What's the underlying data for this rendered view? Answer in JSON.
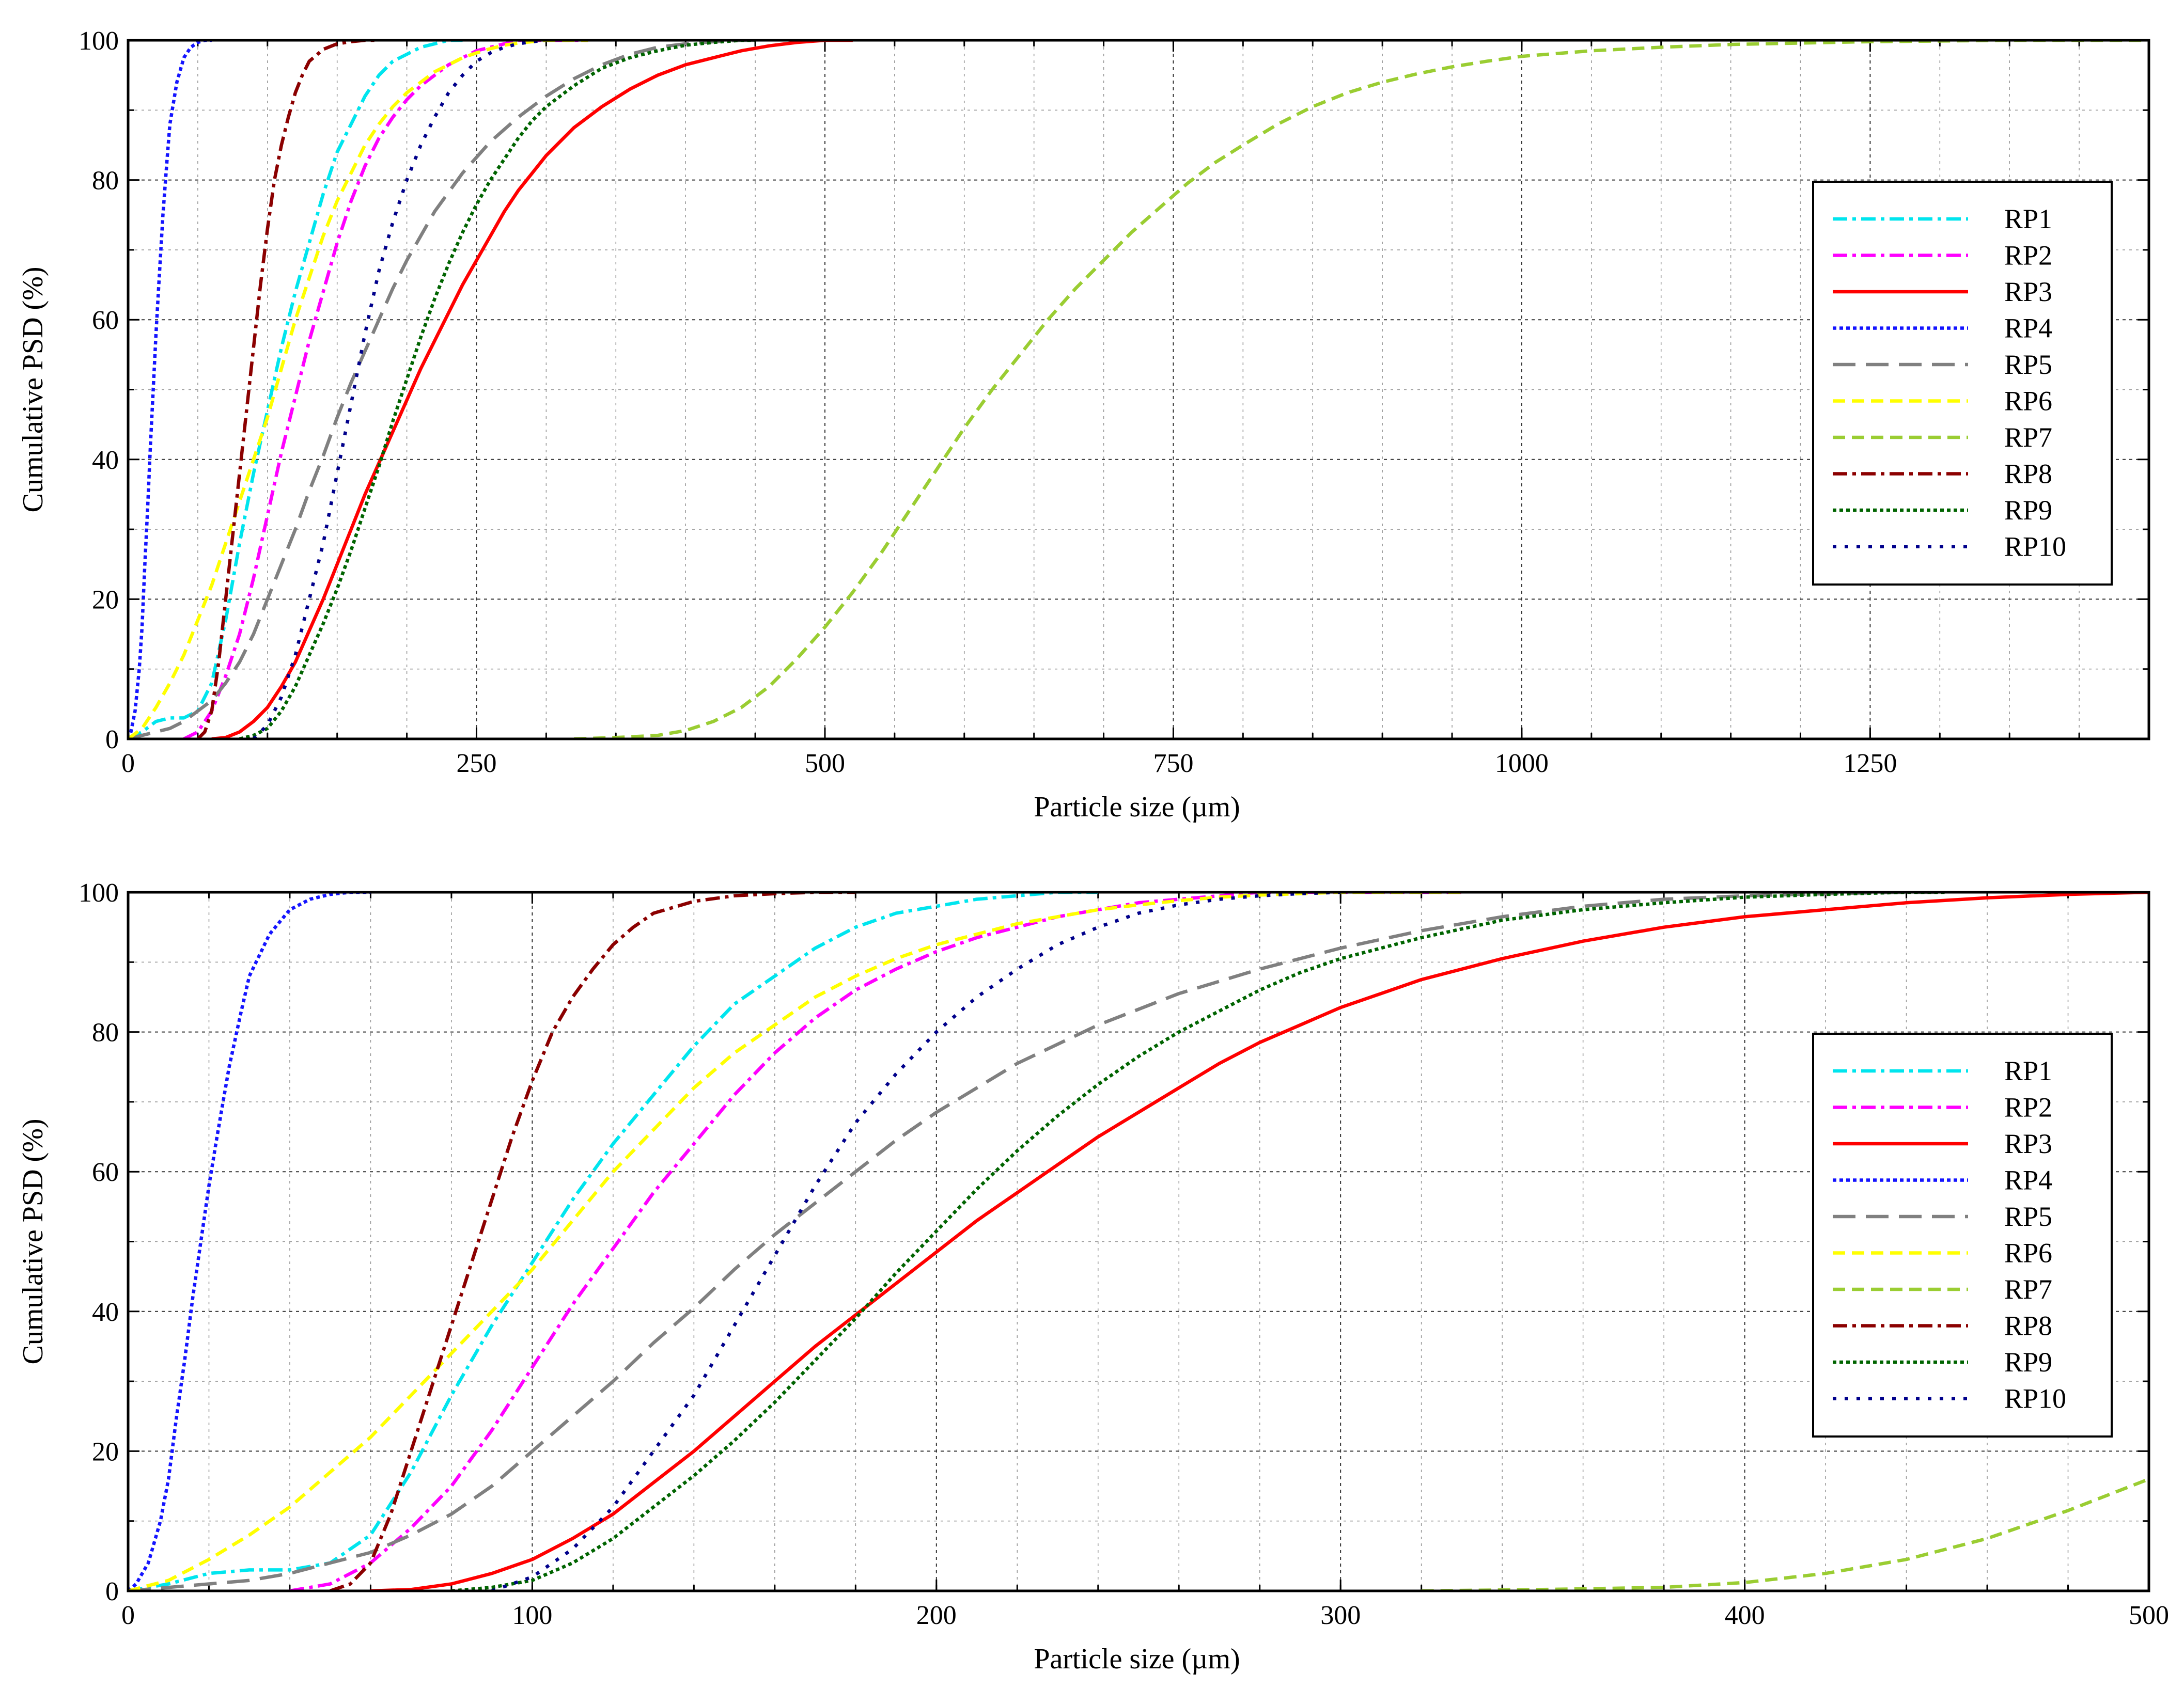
{
  "chart_data": [
    {
      "type": "line",
      "xlabel": "Particle size (µm)",
      "ylabel": "Cumulative PSD (%)",
      "xlim": [
        0,
        1450
      ],
      "ylim": [
        0,
        100
      ],
      "x_major_ticks": [
        0,
        250,
        500,
        750,
        1000,
        1250
      ],
      "x_minor_step": 50,
      "y_major_ticks": [
        0,
        20,
        40,
        60,
        80,
        100
      ],
      "y_minor_step": 10,
      "grid": true,
      "legend_position": "right",
      "series": [
        {
          "name": "RP1",
          "color": "#00e5ee",
          "dash": "dashdot",
          "x": [
            0,
            10,
            20,
            30,
            40,
            50,
            60,
            70,
            80,
            90,
            100,
            110,
            120,
            130,
            140,
            150,
            160,
            170,
            180,
            190,
            200,
            210,
            220,
            230,
            240
          ],
          "y": [
            0,
            1,
            2.5,
            3,
            3,
            4,
            8,
            17,
            28,
            38,
            47,
            56,
            64,
            71,
            78,
            84,
            88,
            92,
            95,
            97,
            98,
            99,
            99.5,
            100,
            100
          ]
        },
        {
          "name": "RP2",
          "color": "#ff00ff",
          "dash": "dashdot",
          "x": [
            40,
            50,
            60,
            70,
            80,
            90,
            100,
            110,
            120,
            130,
            140,
            150,
            160,
            170,
            180,
            190,
            200,
            210,
            220,
            230,
            240,
            250,
            260,
            270,
            280,
            300,
            320,
            330
          ],
          "y": [
            0,
            1,
            4,
            9,
            15,
            23,
            32,
            41,
            49,
            57,
            64,
            71,
            77,
            82,
            86,
            89,
            91.5,
            93.5,
            95,
            96.5,
            97.5,
            98.5,
            99,
            99.5,
            100,
            100,
            100,
            100
          ]
        },
        {
          "name": "RP3",
          "color": "#ff0000",
          "dash": "solid",
          "x": [
            60,
            70,
            80,
            90,
            100,
            110,
            120,
            130,
            140,
            150,
            160,
            170,
            180,
            190,
            200,
            210,
            220,
            230,
            240,
            250,
            260,
            270,
            280,
            290,
            300,
            320,
            340,
            360,
            380,
            400,
            420,
            440,
            460,
            480,
            500,
            520
          ],
          "y": [
            0,
            0.2,
            1,
            2.5,
            4.5,
            7.5,
            11,
            15.5,
            20,
            25,
            30,
            35,
            39.5,
            44,
            48.5,
            53,
            57,
            61,
            65,
            68.5,
            72,
            75.5,
            78.5,
            81,
            83.5,
            87.5,
            90.5,
            93,
            95,
            96.5,
            97.5,
            98.5,
            99.2,
            99.7,
            100,
            100
          ]
        },
        {
          "name": "RP4",
          "color": "#1414ff",
          "dash": "dot",
          "x": [
            0,
            2,
            5,
            8,
            10,
            12,
            14,
            16,
            18,
            20,
            22,
            25,
            28,
            30,
            35,
            40,
            45,
            50,
            55,
            60
          ],
          "y": [
            0,
            1,
            4,
            10,
            16,
            25,
            33,
            42,
            50,
            58,
            65,
            75,
            83,
            88,
            94,
            97.5,
            99,
            99.7,
            100,
            100
          ]
        },
        {
          "name": "RP5",
          "color": "#808080",
          "dash": "longdash",
          "x": [
            0,
            10,
            20,
            30,
            40,
            50,
            60,
            70,
            80,
            90,
            100,
            110,
            120,
            130,
            140,
            150,
            160,
            170,
            180,
            190,
            200,
            220,
            240,
            260,
            280,
            300,
            320,
            340,
            360,
            380,
            400,
            420,
            440,
            450
          ],
          "y": [
            0,
            0.5,
            1,
            1.5,
            2.5,
            4,
            5.5,
            8,
            11,
            15,
            20,
            25,
            30,
            35.5,
            40.5,
            46,
            51,
            55.5,
            60,
            64.5,
            68.5,
            75.5,
            81,
            85.5,
            89,
            92,
            94.5,
            96.5,
            98,
            99,
            99.5,
            99.8,
            100,
            100
          ]
        },
        {
          "name": "RP6",
          "color": "#ffff00",
          "dash": "dash",
          "x": [
            0,
            10,
            20,
            30,
            40,
            50,
            60,
            70,
            80,
            90,
            100,
            110,
            120,
            130,
            140,
            150,
            160,
            170,
            180,
            190,
            200,
            210,
            220,
            230,
            240,
            250,
            260,
            270,
            280,
            290,
            300,
            320,
            330
          ],
          "y": [
            0,
            1.5,
            4.5,
            8,
            12,
            17,
            22,
            28,
            34,
            40,
            46,
            53,
            60,
            66,
            72,
            77,
            81,
            85,
            88,
            90.5,
            92.5,
            94,
            95.5,
            96.5,
            97.5,
            98.2,
            98.8,
            99.3,
            99.6,
            99.8,
            100,
            100,
            100
          ]
        },
        {
          "name": "RP7",
          "color": "#9acd32",
          "dash": "dash",
          "x": [
            320,
            350,
            380,
            400,
            420,
            440,
            460,
            480,
            500,
            520,
            540,
            560,
            580,
            600,
            620,
            640,
            660,
            680,
            700,
            720,
            740,
            760,
            780,
            800,
            825,
            850,
            875,
            900,
            925,
            950,
            975,
            1000,
            1050,
            1100,
            1150,
            1200,
            1250,
            1300,
            1350,
            1400,
            1450
          ],
          "y": [
            0,
            0.2,
            0.5,
            1.2,
            2.5,
            4.5,
            7.5,
            11.5,
            16,
            21,
            26.5,
            32.5,
            38.5,
            44.5,
            50,
            55,
            60,
            64.5,
            68.5,
            72.5,
            76,
            79.5,
            82.5,
            85,
            88,
            90.5,
            92.5,
            94,
            95.2,
            96.2,
            97,
            97.7,
            98.5,
            99,
            99.4,
            99.6,
            99.8,
            99.9,
            100,
            100,
            100
          ]
        },
        {
          "name": "RP8",
          "color": "#8b0000",
          "dash": "dashdot",
          "x": [
            50,
            55,
            60,
            65,
            70,
            75,
            80,
            85,
            90,
            95,
            100,
            105,
            110,
            115,
            120,
            125,
            130,
            140,
            150,
            160,
            170,
            180
          ],
          "y": [
            0,
            1,
            4,
            11,
            20,
            29,
            38,
            47,
            56,
            65,
            73,
            80,
            85,
            89,
            92.5,
            95,
            97,
            98.7,
            99.5,
            99.8,
            100,
            100
          ]
        },
        {
          "name": "RP9",
          "color": "#006400",
          "dash": "dot",
          "x": [
            80,
            90,
            100,
            110,
            120,
            130,
            140,
            150,
            160,
            170,
            180,
            190,
            200,
            210,
            220,
            230,
            240,
            250,
            260,
            270,
            280,
            290,
            300,
            320,
            340,
            360,
            380,
            400,
            420,
            440,
            450
          ],
          "y": [
            0,
            0.5,
            1.5,
            4,
            7.5,
            12,
            16.5,
            21.5,
            27,
            33,
            39,
            45.5,
            51.5,
            57.5,
            63,
            68,
            72.5,
            76.5,
            80,
            83,
            86,
            88.5,
            90.5,
            93.5,
            96,
            97.5,
            98.5,
            99.3,
            99.7,
            100,
            100
          ]
        },
        {
          "name": "RP10",
          "color": "#00008b",
          "dash": "sparsedot",
          "x": [
            90,
            100,
            110,
            120,
            130,
            140,
            150,
            160,
            170,
            180,
            190,
            200,
            210,
            220,
            230,
            240,
            250,
            260,
            270,
            280,
            290,
            300
          ],
          "y": [
            0,
            2,
            6,
            12,
            20,
            28,
            38,
            48,
            58,
            67,
            74,
            80,
            85,
            89,
            92.5,
            95,
            97,
            98.2,
            99,
            99.5,
            99.8,
            100
          ]
        }
      ]
    },
    {
      "type": "line",
      "xlabel": "Particle size (µm)",
      "ylabel": "Cumulative PSD (%)",
      "xlim": [
        0,
        500
      ],
      "ylim": [
        0,
        100
      ],
      "x_major_ticks": [
        0,
        100,
        200,
        300,
        400,
        500
      ],
      "x_minor_step": 20,
      "y_major_ticks": [
        0,
        20,
        40,
        60,
        80,
        100
      ],
      "y_minor_step": 10,
      "grid": true,
      "legend_position": "right",
      "series_from_chart": 0
    }
  ],
  "legend_entries": [
    "RP1",
    "RP2",
    "RP3",
    "RP4",
    "RP5",
    "RP6",
    "RP7",
    "RP8",
    "RP9",
    "RP10"
  ]
}
